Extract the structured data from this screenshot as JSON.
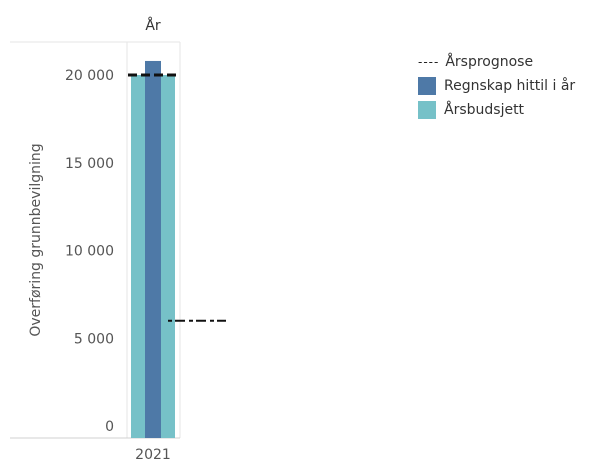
{
  "chart_data": {
    "type": "bar",
    "header": "År",
    "ylabel": "Overføring grunnbevilgning",
    "ylim": [
      0,
      20500
    ],
    "yticks": [
      0,
      5000,
      10000,
      15000,
      20000
    ],
    "ytick_labels": [
      "0",
      "5 000",
      "10 000",
      "15 000",
      "20 000"
    ],
    "categories": [
      "2021"
    ],
    "series": [
      {
        "name": "Årsbudsjett",
        "values": [
          20000
        ],
        "color": "#76c1c8"
      },
      {
        "name": "Regnskap hittil i år",
        "values": [
          20800
        ],
        "color": "#4e79a7"
      }
    ],
    "reference_lines": [
      {
        "name": "Årsprognose",
        "value": 20000,
        "style": "dashed",
        "color": "#111111"
      },
      {
        "value": 6000,
        "style": "dashed",
        "color": "#111111"
      }
    ],
    "legend": {
      "placement": "top-right",
      "items": [
        {
          "label": "Årsprognose",
          "type": "dashed-line"
        },
        {
          "label": "Regnskap hittil i år",
          "type": "swatch",
          "color": "#4e79a7"
        },
        {
          "label": "Årsbudsjett",
          "type": "swatch",
          "color": "#76c1c8"
        }
      ]
    },
    "grid": false
  }
}
